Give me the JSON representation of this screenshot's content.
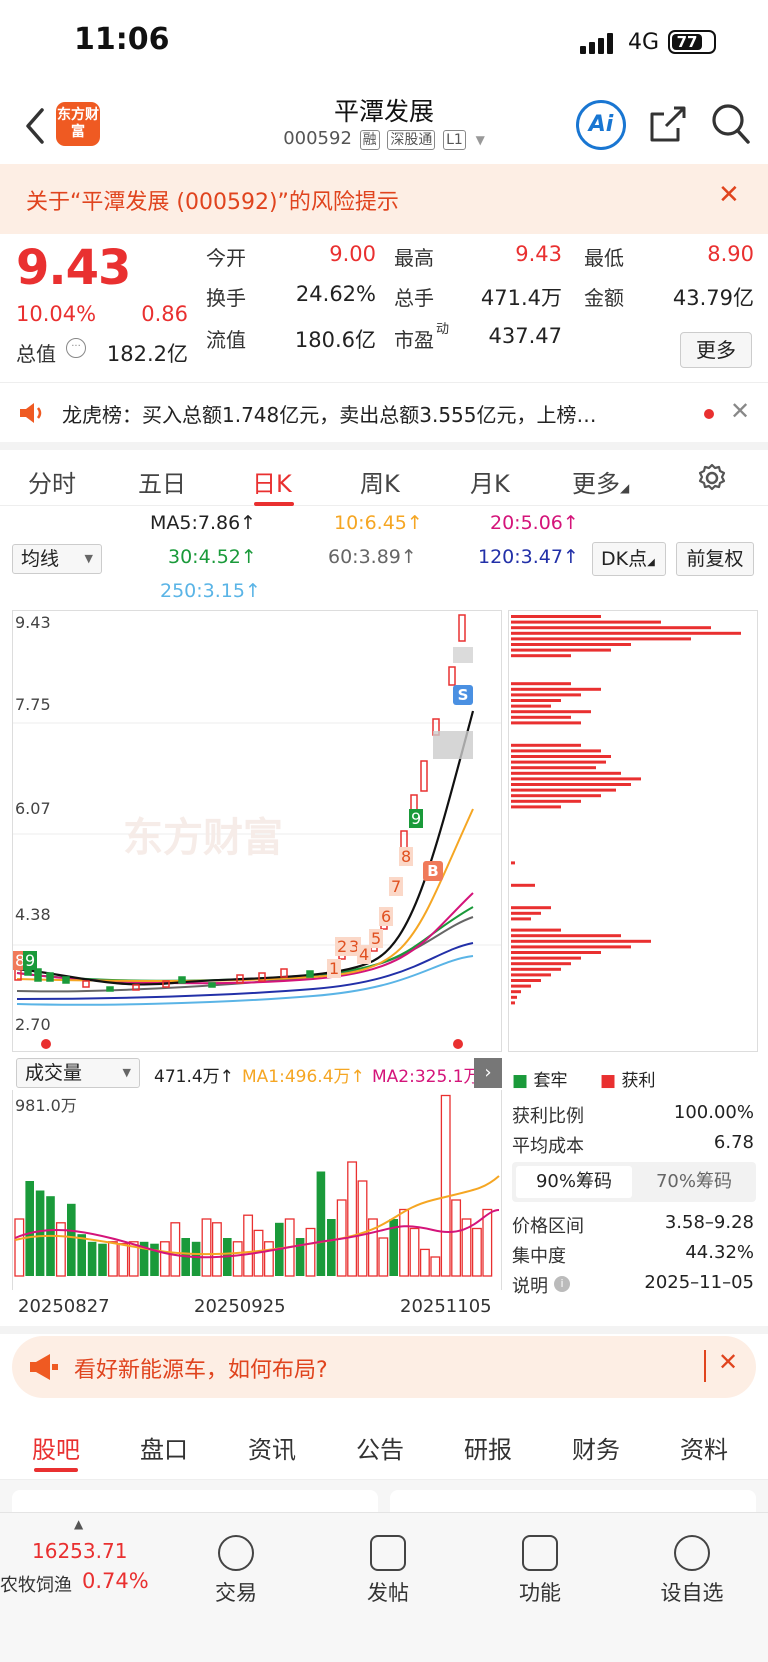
{
  "status_bar": {
    "time": "11:06",
    "network": "4G",
    "battery": "77"
  },
  "nav": {
    "logo_text": "东方财富",
    "title": "平潭发展",
    "code": "000592",
    "tags": [
      "融",
      "深股通",
      "L1"
    ],
    "ai_label": "Ai"
  },
  "risk_banner": {
    "text": "关于“平潭发展 (000592)”的风险提示"
  },
  "quote": {
    "price": "9.43",
    "change_pct": "10.04%",
    "change": "0.86",
    "fields": [
      {
        "label": "今开",
        "value": "9.00",
        "color": "#e93030"
      },
      {
        "label": "最高",
        "value": "9.43",
        "color": "#e93030"
      },
      {
        "label": "最低",
        "value": "8.90",
        "color": "#e93030"
      },
      {
        "label": "换手",
        "value": "24.62%",
        "color": "#222"
      },
      {
        "label": "总手",
        "value": "471.4万",
        "color": "#222"
      },
      {
        "label": "金额",
        "value": "43.79亿",
        "color": "#222"
      },
      {
        "label": "总值",
        "value": "182.2亿",
        "color": "#222"
      },
      {
        "label": "流值",
        "value": "180.6亿",
        "color": "#222"
      },
      {
        "label": "市盈",
        "value": "437.47",
        "color": "#222"
      }
    ],
    "pe_sup": "动",
    "more_label": "更多"
  },
  "ticker": {
    "text": "龙虎榜：买入总额1.748亿元，卖出总额3.555亿元，上榜…"
  },
  "chart_tabs": [
    "分时",
    "五日",
    "日K",
    "周K",
    "月K",
    "更多"
  ],
  "ma_legend": {
    "selector": "均线",
    "items": [
      {
        "text": "MA5:7.86↑",
        "color": "#111111"
      },
      {
        "text": "10:6.45↑",
        "color": "#f5a623"
      },
      {
        "text": "20:5.06↑",
        "color": "#d4147a"
      },
      {
        "text": "30:4.52↑",
        "color": "#1a9a3a"
      },
      {
        "text": "60:3.89↑",
        "color": "#666666"
      },
      {
        "text": "120:3.47↑",
        "color": "#2230a8"
      },
      {
        "text": "250:3.15↑",
        "color": "#5ab4e6"
      }
    ],
    "dk_label": "DK点",
    "adjust_label": "前复权"
  },
  "kline_axis": {
    "labels": [
      "9.43",
      "7.75",
      "6.07",
      "4.38",
      "2.70"
    ]
  },
  "kline_marks": {
    "sell": "S",
    "buy": "B",
    "counts": [
      "8",
      "9",
      "1",
      "2",
      "3",
      "4",
      "5",
      "6",
      "7",
      "8",
      "9"
    ]
  },
  "watermark": "东方财富",
  "volume": {
    "selector": "成交量",
    "current": "471.4万↑",
    "ma1": "MA1:496.4万↑",
    "ma2": "MA2:325.1万",
    "max_label": "981.0万",
    "dates": [
      "20250827",
      "20250925",
      "20251105"
    ]
  },
  "chips": {
    "legend": [
      {
        "label": "套牢",
        "color": "#1a9a3a"
      },
      {
        "label": "获利",
        "color": "#e93030"
      }
    ],
    "rows": [
      {
        "label": "获利比例",
        "value": "100.00%"
      },
      {
        "label": "平均成本",
        "value": "6.78"
      }
    ],
    "tabs": [
      "90%筹码",
      "70%筹码"
    ],
    "rows2": [
      {
        "label": "价格区间",
        "value": "3.58–9.28"
      },
      {
        "label": "集中度",
        "value": "44.32%"
      },
      {
        "label": "说明",
        "value": "2025–11–05"
      }
    ]
  },
  "promo": {
    "text": "看好新能源车，如何布局?"
  },
  "bottom_tabs": [
    "股吧",
    "盘口",
    "资讯",
    "公告",
    "研报",
    "财务",
    "资料"
  ],
  "footer": {
    "index_value": "16253.71",
    "index_name": "农牧饲渔",
    "index_change": "0.74%",
    "items": [
      "交易",
      "发帖",
      "功能",
      "设自选"
    ]
  }
}
